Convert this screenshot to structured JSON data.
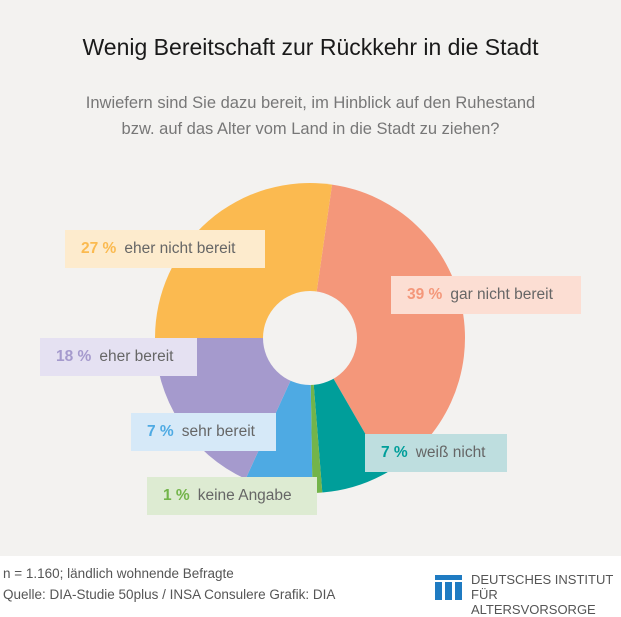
{
  "title": "Wenig Bereitschaft zur Rückkehr in die Stadt",
  "subtitle_line1": "Inwiefern sind Sie dazu bereit, im Hinblick auf den Ruhestand",
  "subtitle_line2": "bzw. auf das Alter vom Land in die Stadt zu ziehen?",
  "chart_data": {
    "type": "pie",
    "variant": "donut",
    "title": "Wenig Bereitschaft zur Rückkehr in die Stadt",
    "unit": "%",
    "slices": [
      {
        "label": "gar nicht bereit",
        "value": 39,
        "pct_text": "39 %",
        "color": "#F4977A",
        "label_bg": "#FCDED3"
      },
      {
        "label": "weiß nicht",
        "value": 7,
        "pct_text": "7 %",
        "color": "#009E9A",
        "label_bg": "#BEDEDF"
      },
      {
        "label": "keine Angabe",
        "value": 1,
        "pct_text": "1 %",
        "color": "#73B44A",
        "label_bg": "#DDEBD2"
      },
      {
        "label": "sehr bereit",
        "value": 7,
        "pct_text": "7 %",
        "color": "#4EAAE3",
        "label_bg": "#D6E9F8"
      },
      {
        "label": "eher bereit",
        "value": 18,
        "pct_text": "18 %",
        "color": "#A59ACD",
        "label_bg": "#E5E1F2"
      },
      {
        "label": "eher nicht bereit",
        "value": 27,
        "pct_text": "27 %",
        "color": "#FBBA50",
        "label_bg": "#FDEBCD"
      }
    ]
  },
  "footer": {
    "sample": "n = 1.160; ländlich wohnende Befragte",
    "source": "Quelle: DIA-Studie 50plus / INSA Consulere  Grafik: DIA"
  },
  "logo": {
    "line1": "DEUTSCHES INSTITUT",
    "line2": "FÜR ALTERSVORSORGE",
    "color": "#1F7BC2"
  }
}
